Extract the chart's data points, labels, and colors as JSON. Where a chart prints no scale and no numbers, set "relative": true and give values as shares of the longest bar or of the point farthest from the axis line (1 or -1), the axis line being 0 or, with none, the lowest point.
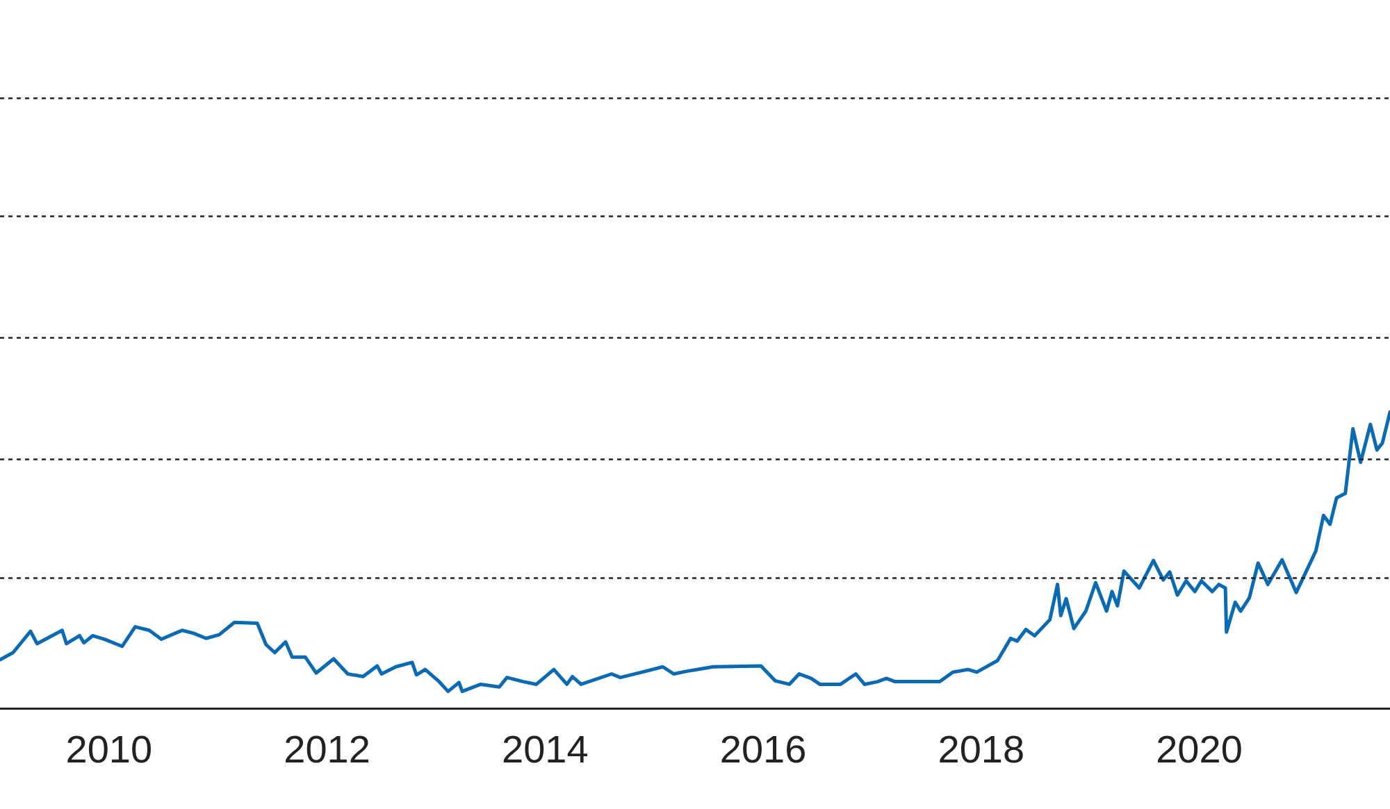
{
  "chart_data": {
    "type": "line",
    "relative": true,
    "ref_lines": [
      {
        "axis": "y",
        "value": 0.44,
        "line_style": "dotted",
        "color": "#222222"
      },
      {
        "axis": "y",
        "value": 0.84,
        "line_style": "dotted",
        "color": "#222222"
      },
      {
        "axis": "y",
        "value": 1.25,
        "line_style": "dotted",
        "color": "#222222"
      },
      {
        "axis": "y",
        "value": 1.66,
        "line_style": "dotted",
        "color": "#222222"
      },
      {
        "axis": "y",
        "value": 2.06,
        "line_style": "dotted",
        "color": "#222222"
      }
    ],
    "xlim": [
      2009,
      2021.75
    ],
    "xticks": [
      2010,
      2012,
      2014,
      2016,
      2018,
      2020
    ],
    "x": [
      2009.0,
      2009.12,
      2009.28,
      2009.34,
      2009.57,
      2009.61,
      2009.73,
      2009.77,
      2009.85,
      2009.96,
      2010.12,
      2010.24,
      2010.37,
      2010.48,
      2010.67,
      2010.77,
      2010.89,
      2011.01,
      2011.15,
      2011.36,
      2011.44,
      2011.52,
      2011.62,
      2011.68,
      2011.8,
      2011.9,
      2012.06,
      2012.19,
      2012.33,
      2012.46,
      2012.5,
      2012.63,
      2012.78,
      2012.82,
      2012.9,
      2013.02,
      2013.11,
      2013.21,
      2013.24,
      2013.41,
      2013.58,
      2013.65,
      2013.8,
      2013.92,
      2014.08,
      2014.2,
      2014.25,
      2014.33,
      2014.61,
      2014.69,
      2014.89,
      2015.08,
      2015.18,
      2015.3,
      2015.54,
      2015.98,
      2016.11,
      2016.24,
      2016.33,
      2016.44,
      2016.52,
      2016.71,
      2016.85,
      2016.93,
      2017.05,
      2017.13,
      2017.21,
      2017.62,
      2017.74,
      2017.88,
      2017.96,
      2018.15,
      2018.27,
      2018.33,
      2018.41,
      2018.49,
      2018.63,
      2018.7,
      2018.73,
      2018.78,
      2018.85,
      2018.96,
      2019.05,
      2019.15,
      2019.2,
      2019.25,
      2019.31,
      2019.45,
      2019.58,
      2019.67,
      2019.73,
      2019.8,
      2019.88,
      2019.96,
      2020.02,
      2020.12,
      2020.18,
      2020.24,
      2020.25,
      2020.33,
      2020.38,
      2020.46,
      2020.54,
      2020.63,
      2020.76,
      2020.89,
      2021.07,
      2021.14,
      2021.2,
      2021.26,
      2021.34,
      2021.41,
      2021.48,
      2021.57,
      2021.63,
      2021.68,
      2021.75
    ],
    "values": [
      0.164,
      0.188,
      0.26,
      0.218,
      0.263,
      0.218,
      0.245,
      0.221,
      0.245,
      0.233,
      0.209,
      0.275,
      0.263,
      0.233,
      0.263,
      0.254,
      0.236,
      0.248,
      0.29,
      0.287,
      0.215,
      0.188,
      0.224,
      0.173,
      0.173,
      0.119,
      0.167,
      0.116,
      0.107,
      0.143,
      0.116,
      0.14,
      0.155,
      0.113,
      0.131,
      0.093,
      0.057,
      0.087,
      0.057,
      0.081,
      0.072,
      0.104,
      0.09,
      0.081,
      0.131,
      0.081,
      0.107,
      0.081,
      0.116,
      0.104,
      0.122,
      0.14,
      0.116,
      0.125,
      0.14,
      0.143,
      0.093,
      0.081,
      0.116,
      0.101,
      0.081,
      0.081,
      0.116,
      0.081,
      0.09,
      0.101,
      0.09,
      0.09,
      0.122,
      0.131,
      0.122,
      0.161,
      0.236,
      0.227,
      0.266,
      0.245,
      0.299,
      0.418,
      0.313,
      0.37,
      0.269,
      0.328,
      0.424,
      0.328,
      0.394,
      0.346,
      0.463,
      0.406,
      0.499,
      0.433,
      0.46,
      0.382,
      0.43,
      0.394,
      0.43,
      0.394,
      0.418,
      0.406,
      0.257,
      0.358,
      0.328,
      0.373,
      0.49,
      0.418,
      0.501,
      0.391,
      0.531,
      0.651,
      0.621,
      0.71,
      0.725,
      0.943,
      0.83,
      0.958,
      0.872,
      0.895,
      1.0
    ],
    "color": "#0a6ab2"
  }
}
